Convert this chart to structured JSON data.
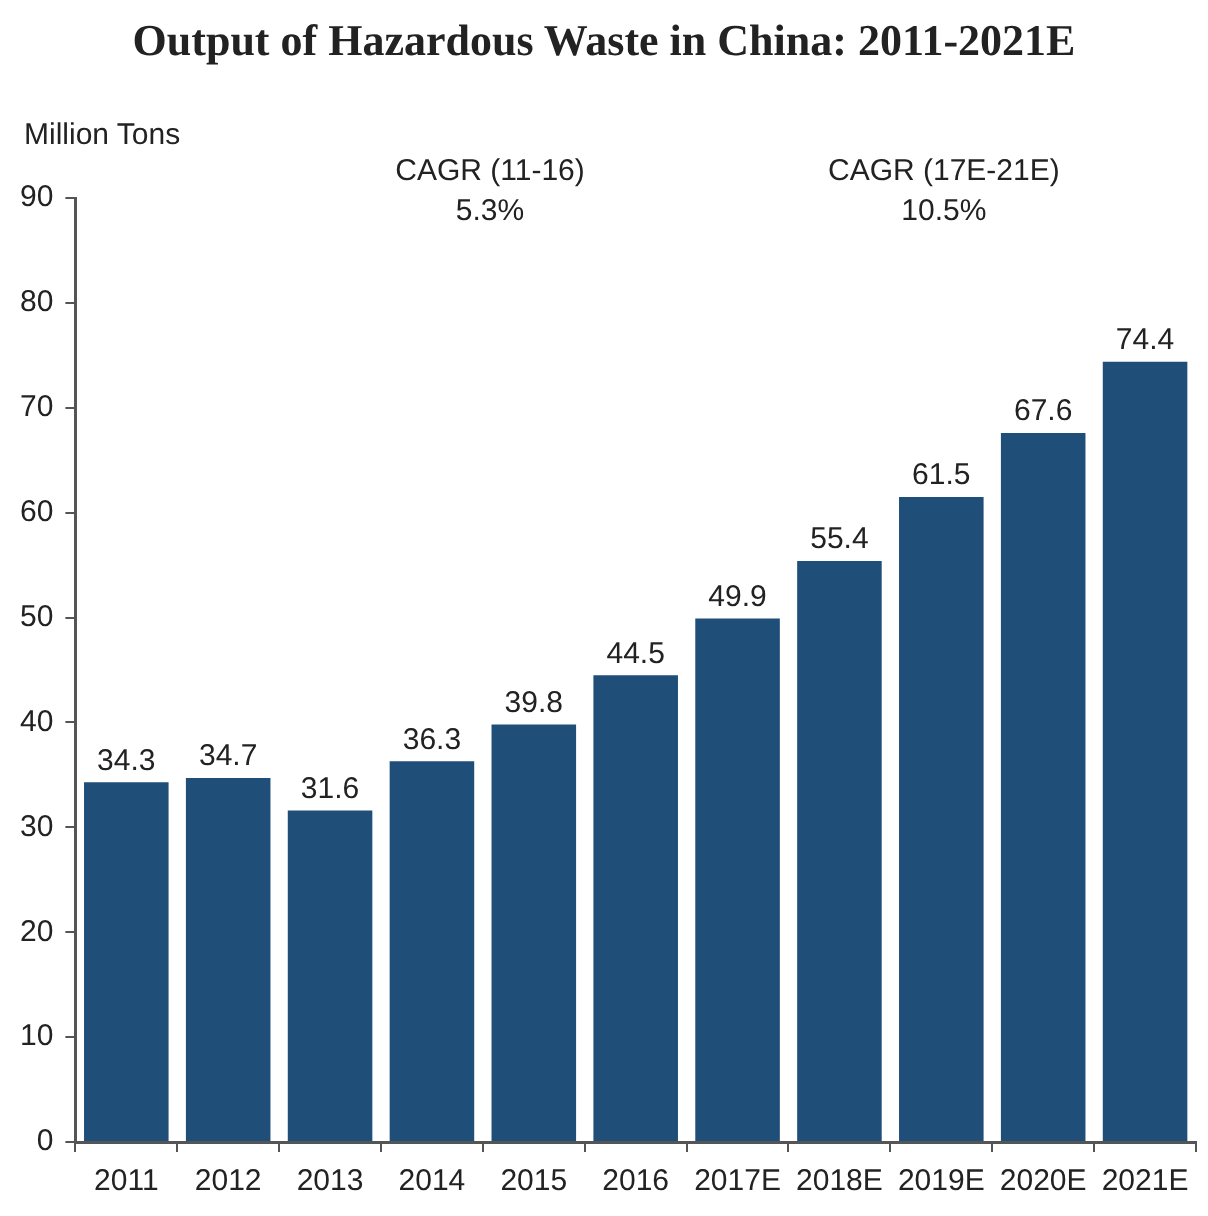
{
  "chart_data": {
    "type": "bar",
    "title": "Output of Hazardous Waste in China: 2011-2021E",
    "ylabel": "Million Tons",
    "annotations": [
      "CAGR (11-16)\n5.3%",
      "CAGR (17E-21E)\n10.5%"
    ],
    "categories": [
      "2011",
      "2012",
      "2013",
      "2014",
      "2015",
      "2016",
      "2017E",
      "2018E",
      "2019E",
      "2020E",
      "2021E"
    ],
    "values": [
      34.3,
      34.7,
      31.6,
      36.3,
      39.8,
      44.5,
      49.9,
      55.4,
      61.5,
      67.6,
      74.4
    ],
    "color": "#1f4e79",
    "ylim": [
      0,
      90
    ],
    "yticks": [
      0,
      10,
      20,
      30,
      40,
      50,
      60,
      70,
      80,
      90
    ],
    "grid": false,
    "data_labels": true,
    "legend": false
  }
}
